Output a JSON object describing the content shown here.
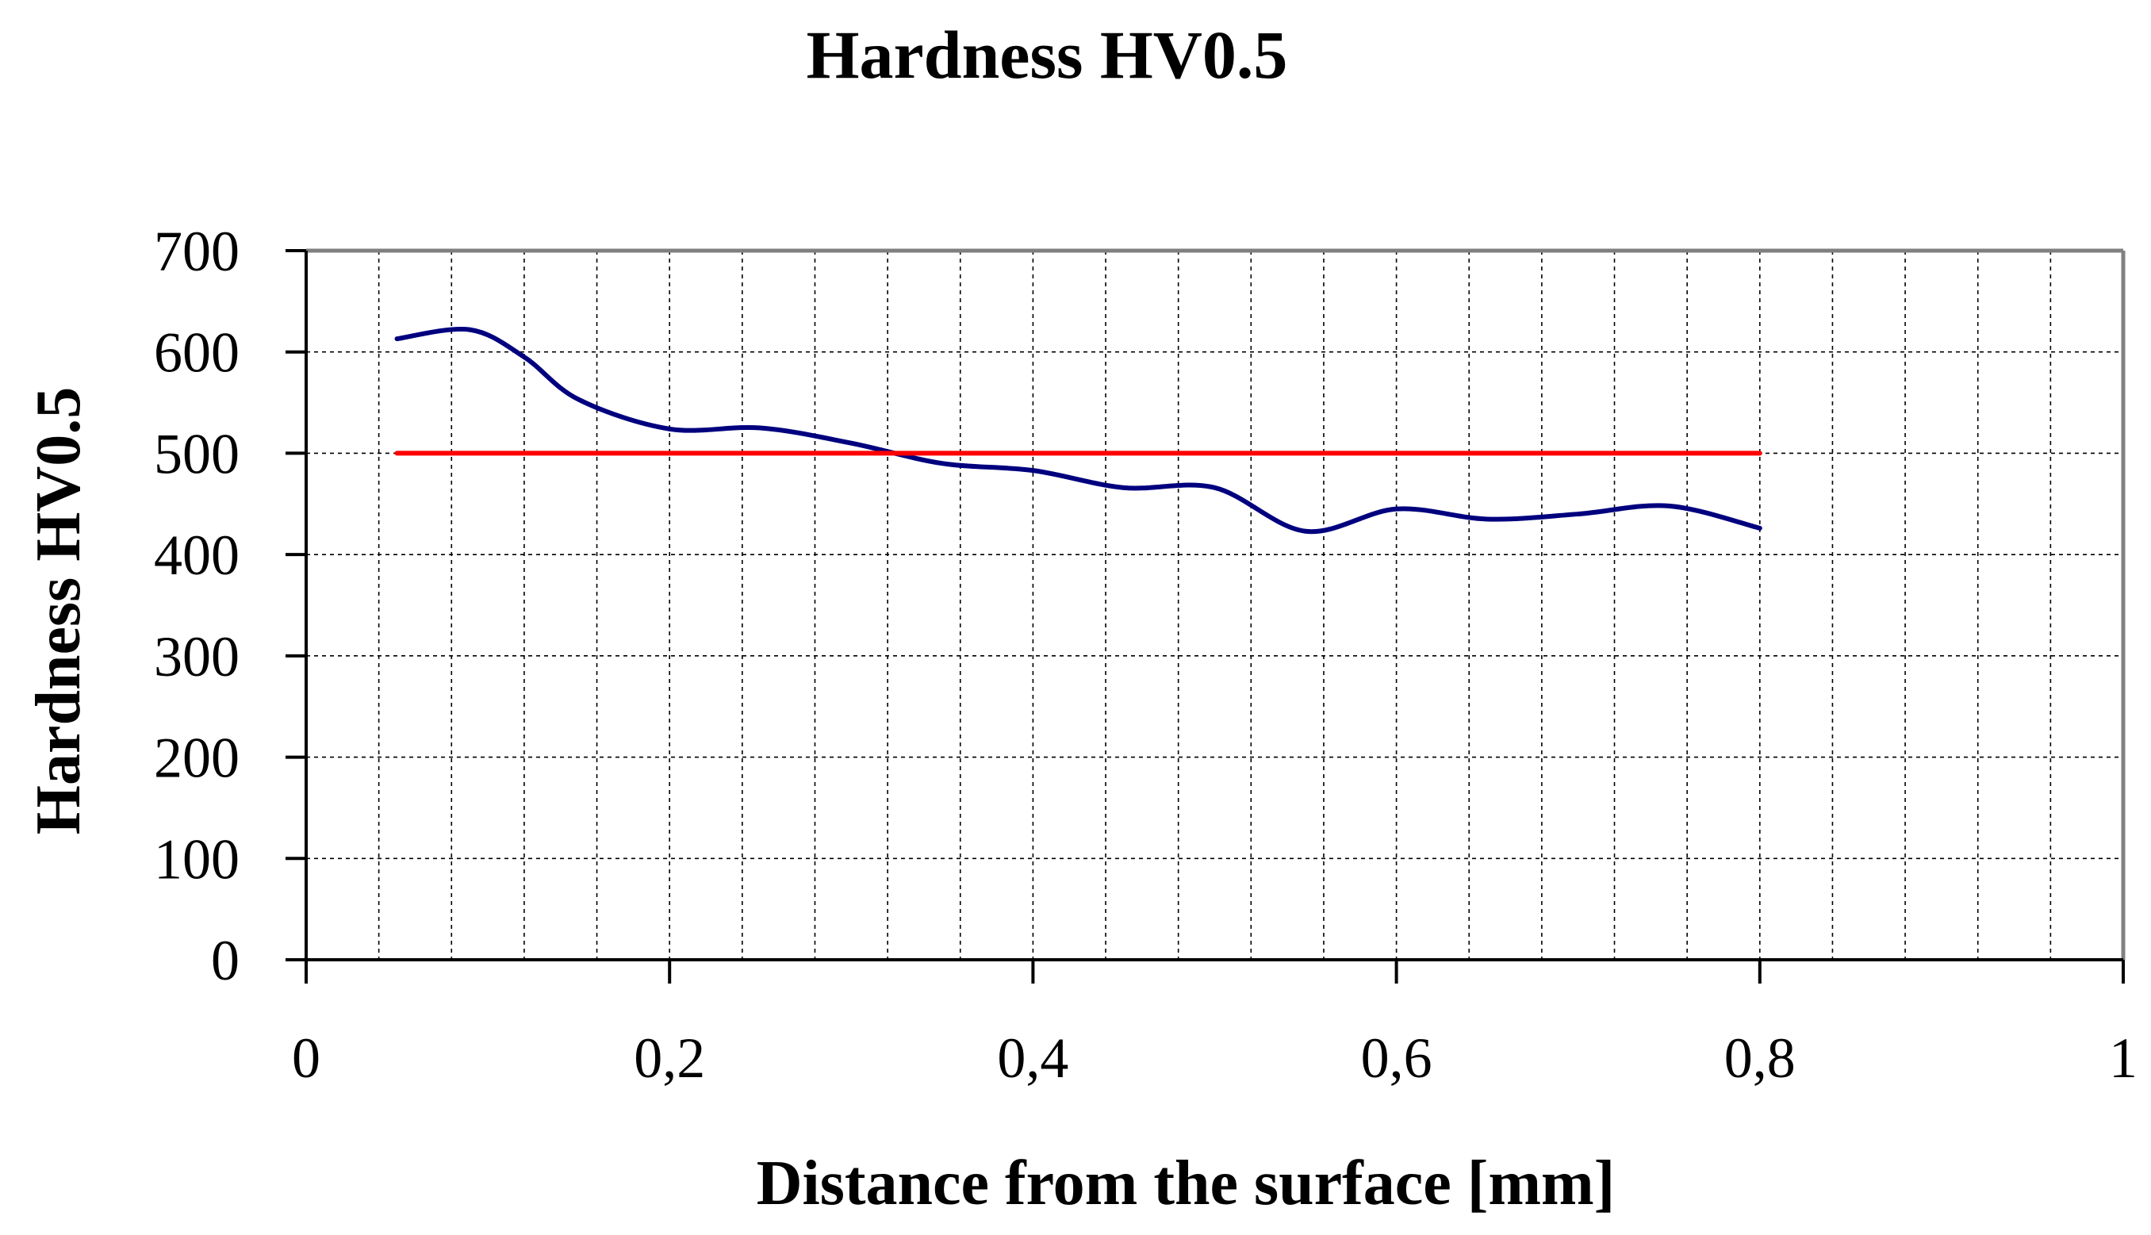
{
  "chart_data": {
    "type": "line",
    "title": "Hardness HV0.5",
    "xlabel": "Distance from the surface [mm]",
    "ylabel": "Hardness  HV0.5",
    "xlim": [
      0,
      1
    ],
    "ylim": [
      0,
      700
    ],
    "x_ticks": [
      0,
      0.2,
      0.4,
      0.6,
      0.8,
      1
    ],
    "x_tick_labels": [
      "0",
      "0,2",
      "0,4",
      "0,6",
      "0,8",
      "1"
    ],
    "y_ticks": [
      0,
      100,
      200,
      300,
      400,
      500,
      600,
      700
    ],
    "y_tick_labels": [
      "0",
      "100",
      "200",
      "300",
      "400",
      "500",
      "600",
      "700"
    ],
    "x_minor_step": 0.04,
    "grid": true,
    "legend": "none",
    "series": [
      {
        "color": "#00007f",
        "x": [
          0.05,
          0.09,
          0.12,
          0.15,
          0.2,
          0.25,
          0.3,
          0.35,
          0.4,
          0.45,
          0.5,
          0.55,
          0.6,
          0.65,
          0.7,
          0.75,
          0.8
        ],
        "y": [
          613,
          622,
          595,
          553,
          524,
          525,
          510,
          490,
          483,
          466,
          466,
          423,
          445,
          435,
          440,
          448,
          426
        ]
      },
      {
        "color": "#ff0000",
        "x": [
          0.05,
          0.8
        ],
        "y": [
          500,
          500
        ]
      }
    ]
  }
}
